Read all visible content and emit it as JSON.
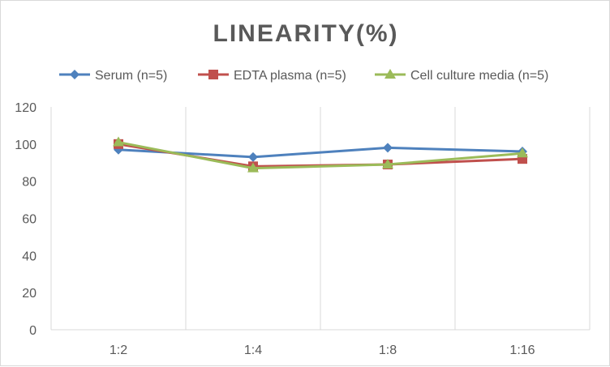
{
  "chart_data": {
    "type": "line",
    "title": "LINEARITY(%)",
    "categories": [
      "1:2",
      "1:4",
      "1:8",
      "1:16"
    ],
    "ylim": [
      0,
      120
    ],
    "yticks": [
      0,
      20,
      40,
      60,
      80,
      100,
      120
    ],
    "grid": "vertical",
    "legend": "top",
    "series": [
      {
        "name": "Serum (n=5)",
        "values": [
          97,
          93,
          98,
          96
        ],
        "color": "#4e81bd",
        "marker": "diamond"
      },
      {
        "name": "EDTA plasma (n=5)",
        "values": [
          100,
          88,
          89,
          92
        ],
        "color": "#c0504d",
        "marker": "square"
      },
      {
        "name": "Cell culture media (n=5)",
        "values": [
          101,
          87,
          89,
          95
        ],
        "color": "#9bbb59",
        "marker": "triangle"
      }
    ]
  }
}
